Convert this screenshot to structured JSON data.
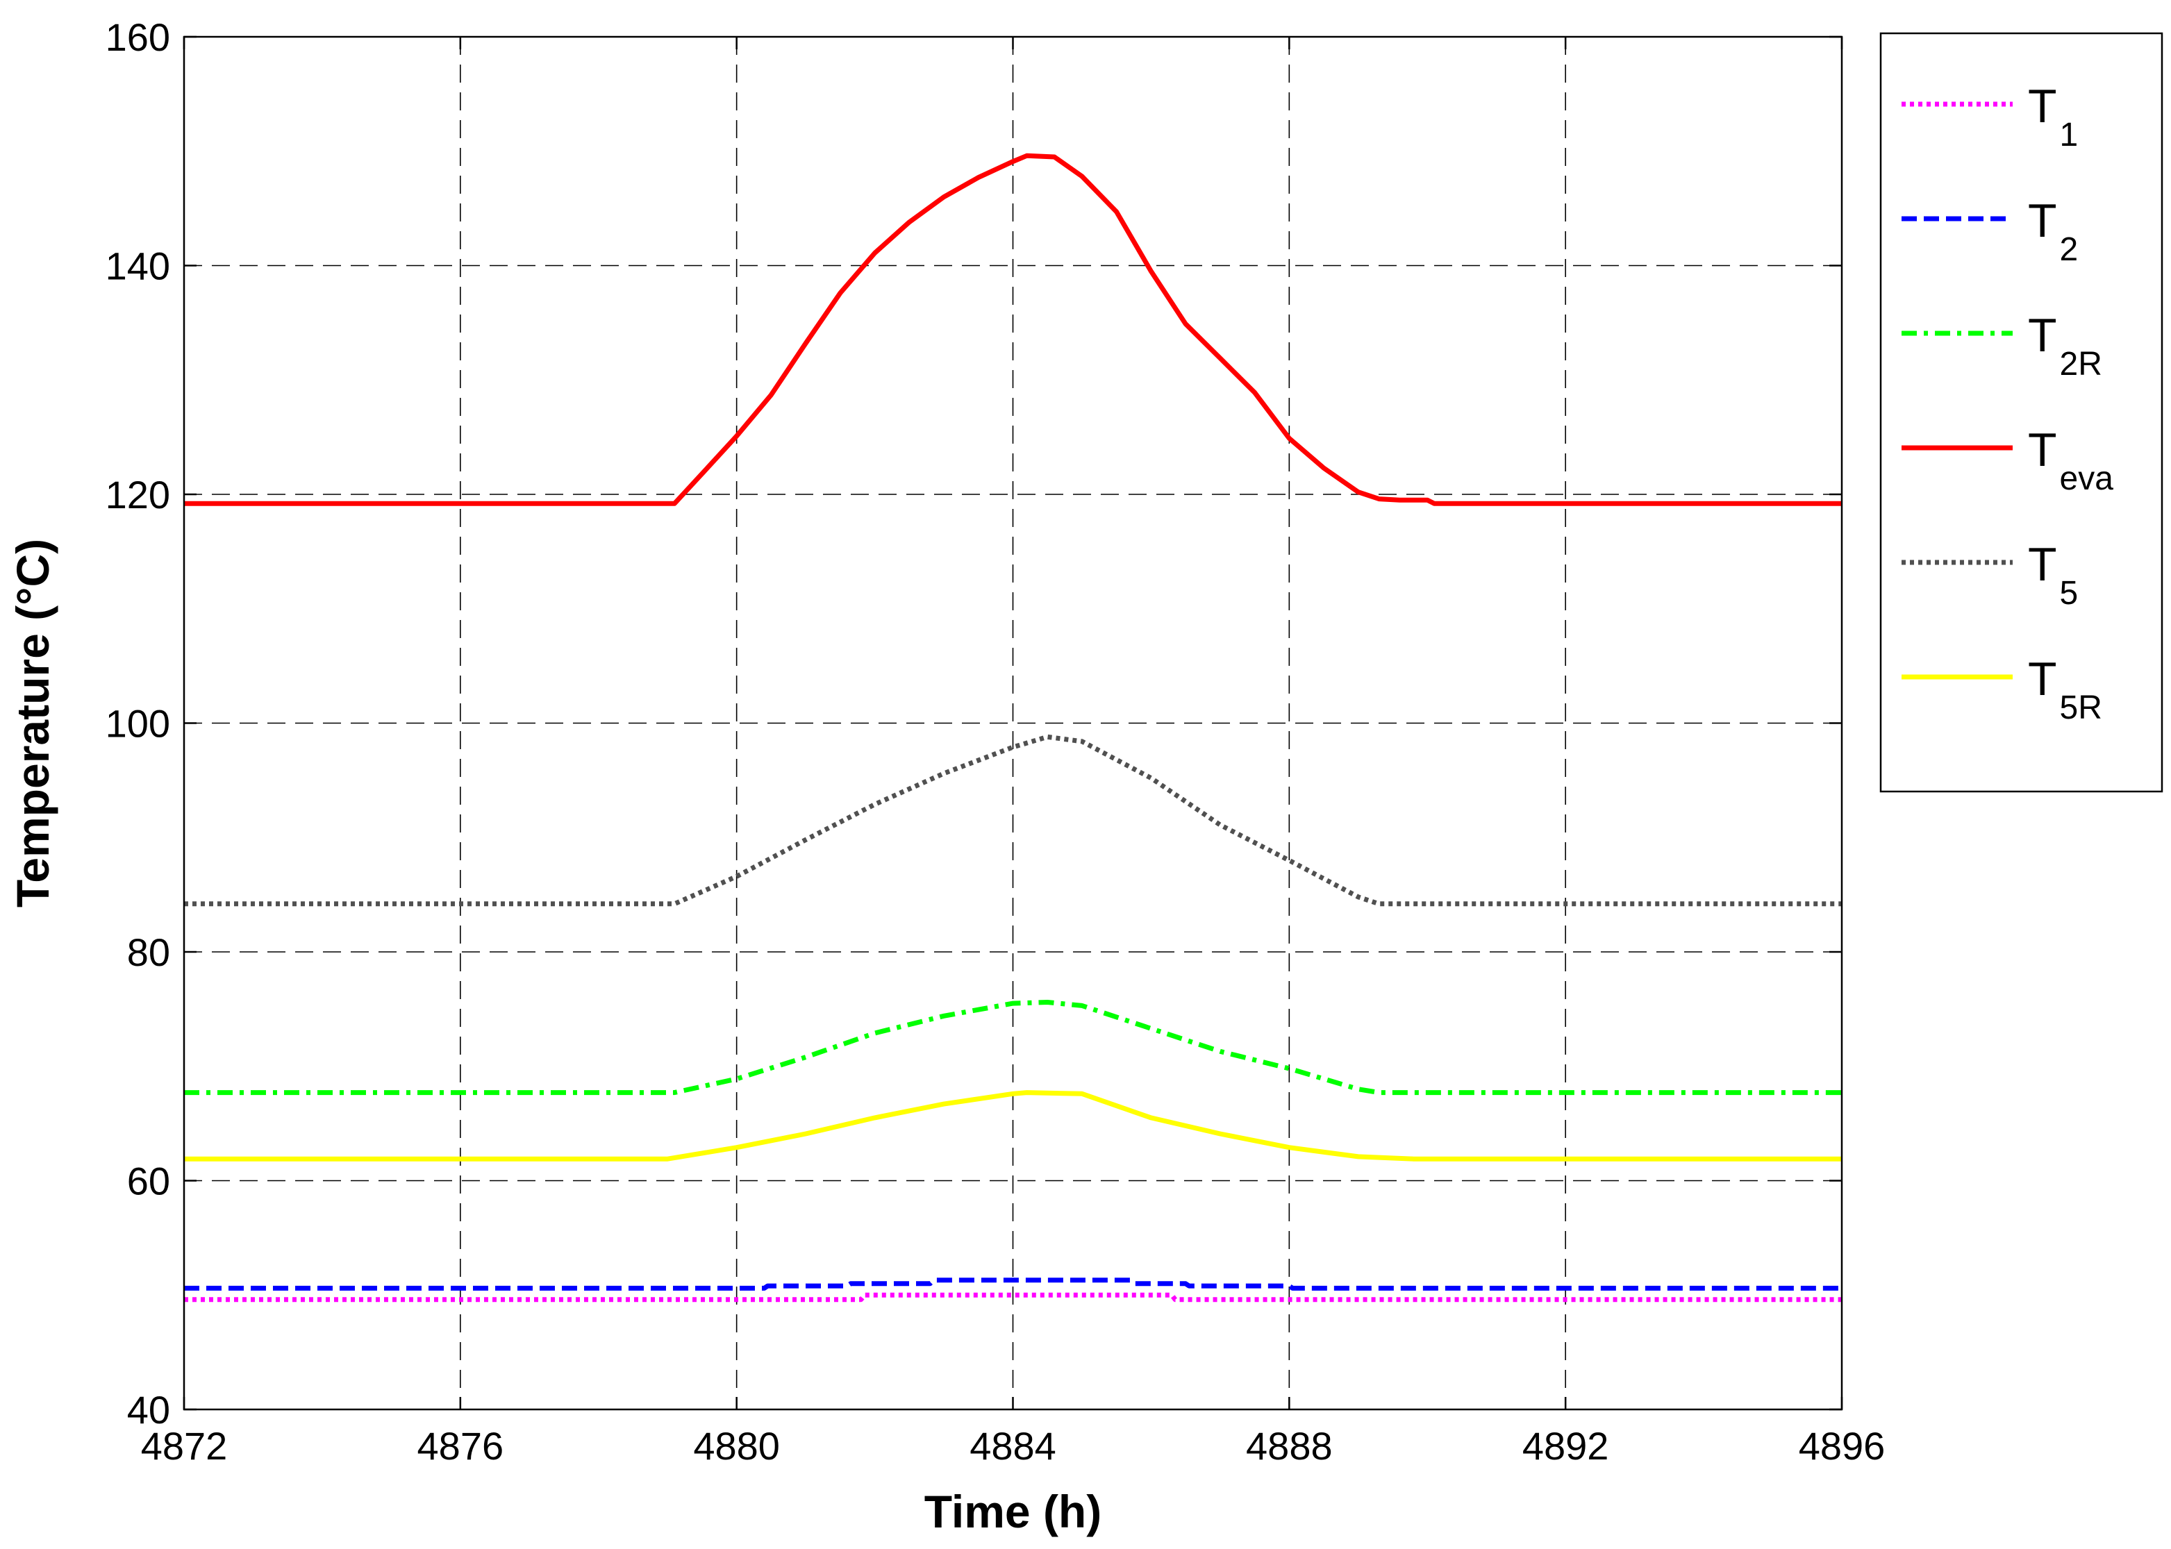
{
  "chart_data": {
    "type": "line",
    "title": "",
    "xlabel": "Time (h)",
    "ylabel": "Temperature (°C)",
    "xlim": [
      4872,
      4896
    ],
    "ylim": [
      40,
      160
    ],
    "xticks": [
      4872,
      4876,
      4880,
      4884,
      4888,
      4892,
      4896
    ],
    "yticks": [
      40,
      60,
      80,
      100,
      120,
      140,
      160
    ],
    "x_tick_labels": [
      "4872",
      "4876",
      "4880",
      "4884",
      "4888",
      "4892",
      "4896"
    ],
    "y_tick_labels": [
      "40",
      "60",
      "80",
      "100",
      "120",
      "140",
      "160"
    ],
    "grid": true,
    "legend_position": "outside-right-top",
    "series": [
      {
        "name": "T1",
        "label_main": "T",
        "label_sub": "1",
        "color": "#ff00ff",
        "dash": "dotted",
        "x": [
          4872,
          4881.8,
          4881.85,
          4886.3,
          4886.35,
          4896
        ],
        "y": [
          49.6,
          49.6,
          50.0,
          50.0,
          49.6,
          49.6
        ]
      },
      {
        "name": "T2",
        "label_main": "T",
        "label_sub": "2",
        "color": "#0000ff",
        "dash": "dashed",
        "x": [
          4872,
          4880.4,
          4880.45,
          4881.6,
          4881.65,
          4882.8,
          4882.85,
          4885.7,
          4885.75,
          4886.5,
          4886.55,
          4888.0,
          4888.05,
          4896
        ],
        "y": [
          50.6,
          50.6,
          50.8,
          50.8,
          51.0,
          51.0,
          51.3,
          51.3,
          51.0,
          51.0,
          50.8,
          50.8,
          50.6,
          50.6
        ]
      },
      {
        "name": "T2R",
        "label_main": "T",
        "label_sub": "2R",
        "color": "#00ff00",
        "dash": "dashdot",
        "x": [
          4872,
          4879.1,
          4880.0,
          4881.0,
          4882.0,
          4883.0,
          4884.0,
          4884.5,
          4885.0,
          4886.0,
          4887.0,
          4888.0,
          4889.0,
          4889.3,
          4896
        ],
        "y": [
          67.7,
          67.7,
          68.9,
          70.8,
          72.9,
          74.4,
          75.5,
          75.6,
          75.3,
          73.3,
          71.3,
          69.8,
          68.0,
          67.7,
          67.7
        ]
      },
      {
        "name": "Teva",
        "label_main": "T",
        "label_sub": "eva",
        "color": "#ff0000",
        "dash": "solid",
        "x": [
          4872,
          4879.1,
          4879.5,
          4880.0,
          4880.5,
          4881.0,
          4881.5,
          4882.0,
          4882.5,
          4883.0,
          4883.5,
          4884.0,
          4884.2,
          4884.6,
          4885.0,
          4885.5,
          4886.0,
          4886.5,
          4887.0,
          4887.5,
          4888.0,
          4888.5,
          4889.0,
          4889.3,
          4889.6,
          4890.0,
          4890.1,
          4896
        ],
        "y": [
          119.2,
          119.2,
          121.8,
          125.1,
          128.7,
          133.2,
          137.6,
          141.1,
          143.8,
          146.0,
          147.7,
          149.1,
          149.6,
          149.5,
          147.8,
          144.7,
          139.5,
          134.9,
          131.9,
          128.9,
          124.9,
          122.3,
          120.2,
          119.6,
          119.5,
          119.5,
          119.2,
          119.2
        ]
      },
      {
        "name": "T5",
        "label_main": "T",
        "label_sub": "5",
        "color": "#505050",
        "dash": "dotted",
        "x": [
          4872,
          4879.1,
          4880.0,
          4881.0,
          4882.0,
          4883.0,
          4884.0,
          4884.5,
          4885.0,
          4886.0,
          4887.0,
          4888.0,
          4889.0,
          4889.3,
          4896
        ],
        "y": [
          84.2,
          84.2,
          86.6,
          89.8,
          92.9,
          95.6,
          97.9,
          98.8,
          98.4,
          95.2,
          91.1,
          88.0,
          84.8,
          84.2,
          84.2
        ]
      },
      {
        "name": "T5R",
        "label_main": "T",
        "label_sub": "5R",
        "color": "#ffff00",
        "dash": "solid",
        "x": [
          4872,
          4879.0,
          4880.0,
          4881.0,
          4882.0,
          4883.0,
          4884.0,
          4884.2,
          4885.0,
          4886.0,
          4887.0,
          4888.0,
          4889.0,
          4889.8,
          4890.0,
          4896
        ],
        "y": [
          61.9,
          61.9,
          62.9,
          64.1,
          65.5,
          66.7,
          67.6,
          67.7,
          67.6,
          65.5,
          64.1,
          62.9,
          62.1,
          61.9,
          61.9,
          61.9
        ]
      }
    ]
  }
}
